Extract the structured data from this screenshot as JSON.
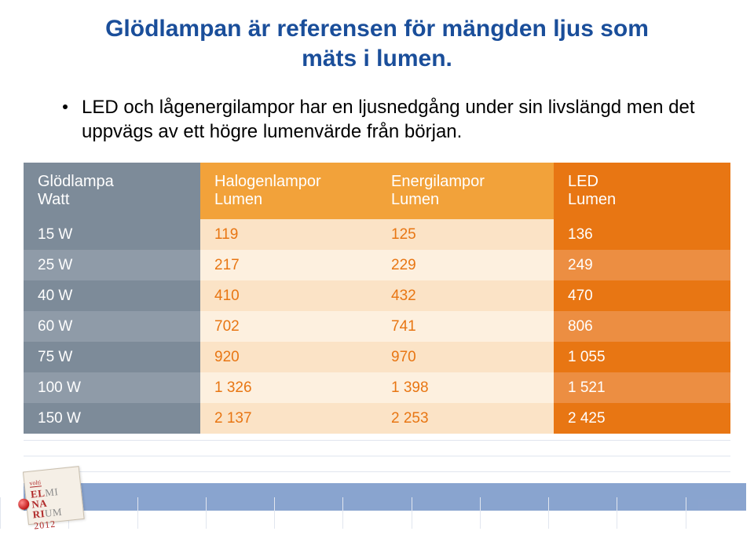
{
  "title_line1": "Glödlampan är referensen för mängden ljus som",
  "title_line2": "mäts i lumen.",
  "bullet_text": "LED och lågenergilampor har en ljusnedgång under sin livslängd men det uppvägs av ett högre lumenvärde från början.",
  "table": {
    "headers": {
      "c1a": "Glödlampa",
      "c1b": "Watt",
      "c2a": "Halogenlampor",
      "c2b": "Lumen",
      "c3a": "Energilampor",
      "c3b": "Lumen",
      "c4a": "LED",
      "c4b": "Lumen"
    },
    "rows": [
      {
        "watt": "15 W",
        "halo": "119",
        "ener": "125",
        "led": "136"
      },
      {
        "watt": "25 W",
        "halo": "217",
        "ener": "229",
        "led": "249"
      },
      {
        "watt": "40 W",
        "halo": "410",
        "ener": "432",
        "led": "470"
      },
      {
        "watt": "60 W",
        "halo": "702",
        "ener": "741",
        "led": "806"
      },
      {
        "watt": "75 W",
        "halo": "920",
        "ener": "970",
        "led": "1 055"
      },
      {
        "watt": "100 W",
        "halo": "1 326",
        "ener": "1 398",
        "led": "1 521"
      },
      {
        "watt": "150 W",
        "halo": "2 137",
        "ener": "2 253",
        "led": "2 425"
      }
    ]
  },
  "colors": {
    "title": "#1a4e9a",
    "header_gray": "#7d8b99",
    "header_orange_light": "#f2a23a",
    "header_orange_dark": "#e87613",
    "cell_text_orange": "#e87613"
  },
  "logo": {
    "top": "volti",
    "l1a": "EL",
    "l1b": "MI",
    "l2a": "NA",
    "l3a": "RI",
    "l3b": "UM",
    "year": "2012"
  }
}
